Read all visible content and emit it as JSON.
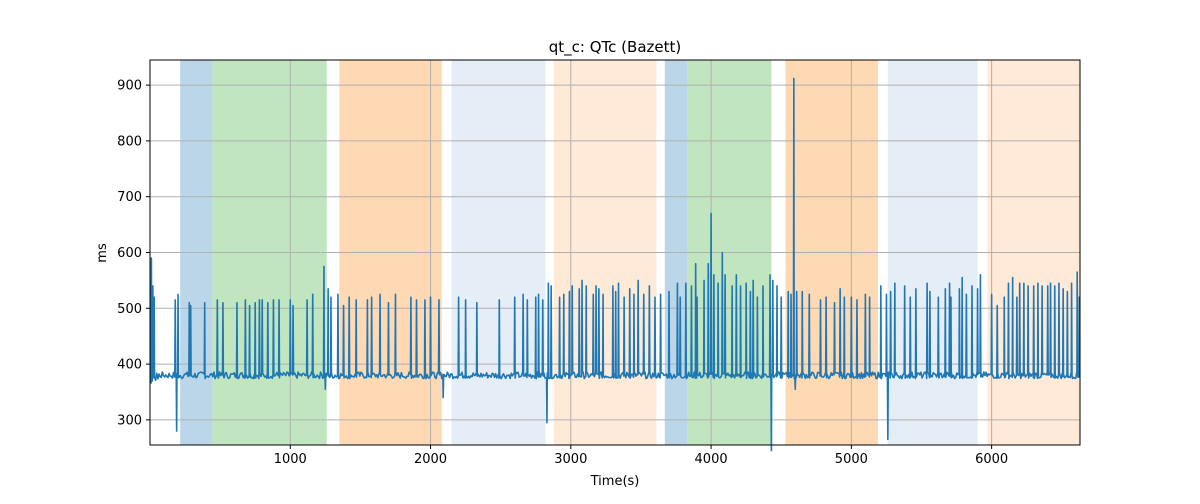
{
  "chart_data": {
    "type": "line",
    "title": "qt_c: QTc (Bazett)",
    "xlabel": "Time(s)",
    "ylabel": "ms",
    "xlim": [
      0,
      6630
    ],
    "ylim": [
      255,
      945
    ],
    "x_ticks": [
      1000,
      2000,
      3000,
      4000,
      5000,
      6000
    ],
    "y_ticks": [
      300,
      400,
      500,
      600,
      700,
      800,
      900
    ],
    "grid": true,
    "line_color": "#1f77b4",
    "shaded_regions": [
      {
        "start": 215,
        "end": 445,
        "color": "#8fbbdb",
        "opacity": 0.6
      },
      {
        "start": 445,
        "end": 1260,
        "color": "#98d394",
        "opacity": 0.6
      },
      {
        "start": 1350,
        "end": 2080,
        "color": "#ffbf80",
        "opacity": 0.6
      },
      {
        "start": 2150,
        "end": 2820,
        "color": "#c6d7ec",
        "opacity": 0.45
      },
      {
        "start": 2880,
        "end": 3610,
        "color": "#ffd0a6",
        "opacity": 0.45
      },
      {
        "start": 3670,
        "end": 3830,
        "color": "#8fbbdb",
        "opacity": 0.6
      },
      {
        "start": 3830,
        "end": 4430,
        "color": "#98d394",
        "opacity": 0.6
      },
      {
        "start": 4530,
        "end": 5190,
        "color": "#ffbf80",
        "opacity": 0.6
      },
      {
        "start": 5260,
        "end": 5900,
        "color": "#c6d7ec",
        "opacity": 0.45
      },
      {
        "start": 5970,
        "end": 6630,
        "color": "#ffd0a6",
        "opacity": 0.45
      }
    ],
    "series": [
      {
        "baseline": 380,
        "baseline_noise": 6,
        "spikes": [
          [
            5,
            545
          ],
          [
            10,
            590
          ],
          [
            20,
            540
          ],
          [
            30,
            520
          ],
          [
            180,
            515
          ],
          [
            190,
            280
          ],
          [
            200,
            525
          ],
          [
            280,
            510
          ],
          [
            290,
            505
          ],
          [
            390,
            510
          ],
          [
            480,
            515
          ],
          [
            520,
            510
          ],
          [
            620,
            510
          ],
          [
            680,
            515
          ],
          [
            710,
            505
          ],
          [
            750,
            510
          ],
          [
            780,
            515
          ],
          [
            800,
            515
          ],
          [
            840,
            510
          ],
          [
            880,
            515
          ],
          [
            920,
            515
          ],
          [
            1000,
            515
          ],
          [
            1020,
            505
          ],
          [
            1120,
            515
          ],
          [
            1160,
            525
          ],
          [
            1240,
            575
          ],
          [
            1250,
            355
          ],
          [
            1270,
            535
          ],
          [
            1290,
            520
          ],
          [
            1340,
            525
          ],
          [
            1380,
            505
          ],
          [
            1420,
            520
          ],
          [
            1470,
            515
          ],
          [
            1550,
            515
          ],
          [
            1580,
            520
          ],
          [
            1640,
            525
          ],
          [
            1700,
            510
          ],
          [
            1750,
            525
          ],
          [
            1860,
            520
          ],
          [
            1900,
            515
          ],
          [
            1960,
            515
          ],
          [
            2000,
            520
          ],
          [
            2060,
            515
          ],
          [
            2090,
            340
          ],
          [
            2200,
            520
          ],
          [
            2250,
            515
          ],
          [
            2330,
            510
          ],
          [
            2490,
            515
          ],
          [
            2600,
            520
          ],
          [
            2660,
            525
          ],
          [
            2690,
            515
          ],
          [
            2750,
            520
          ],
          [
            2770,
            525
          ],
          [
            2800,
            515
          ],
          [
            2830,
            295
          ],
          [
            2840,
            545
          ],
          [
            2860,
            540
          ],
          [
            2920,
            520
          ],
          [
            2950,
            525
          ],
          [
            2990,
            530
          ],
          [
            3010,
            540
          ],
          [
            3060,
            535
          ],
          [
            3080,
            550
          ],
          [
            3110,
            540
          ],
          [
            3160,
            525
          ],
          [
            3180,
            540
          ],
          [
            3200,
            535
          ],
          [
            3230,
            525
          ],
          [
            3300,
            540
          ],
          [
            3320,
            530
          ],
          [
            3340,
            545
          ],
          [
            3380,
            520
          ],
          [
            3420,
            535
          ],
          [
            3450,
            525
          ],
          [
            3480,
            550
          ],
          [
            3520,
            525
          ],
          [
            3560,
            540
          ],
          [
            3600,
            520
          ],
          [
            3640,
            525
          ],
          [
            3700,
            530
          ],
          [
            3760,
            545
          ],
          [
            3780,
            520
          ],
          [
            3820,
            545
          ],
          [
            3860,
            540
          ],
          [
            3890,
            580
          ],
          [
            3900,
            520
          ],
          [
            3950,
            550
          ],
          [
            3980,
            580
          ],
          [
            4000,
            670
          ],
          [
            4020,
            560
          ],
          [
            4050,
            545
          ],
          [
            4080,
            600
          ],
          [
            4100,
            560
          ],
          [
            4150,
            540
          ],
          [
            4180,
            560
          ],
          [
            4210,
            540
          ],
          [
            4250,
            545
          ],
          [
            4280,
            530
          ],
          [
            4300,
            550
          ],
          [
            4330,
            520
          ],
          [
            4370,
            540
          ],
          [
            4420,
            560
          ],
          [
            4430,
            245
          ],
          [
            4440,
            550
          ],
          [
            4470,
            540
          ],
          [
            4500,
            520
          ],
          [
            4550,
            530
          ],
          [
            4570,
            525
          ],
          [
            4590,
            912
          ],
          [
            4600,
            355
          ],
          [
            4610,
            530
          ],
          [
            4650,
            530
          ],
          [
            4700,
            525
          ],
          [
            4780,
            515
          ],
          [
            4820,
            520
          ],
          [
            4880,
            510
          ],
          [
            4920,
            535
          ],
          [
            4950,
            520
          ],
          [
            5000,
            520
          ],
          [
            5040,
            515
          ],
          [
            5100,
            525
          ],
          [
            5130,
            520
          ],
          [
            5210,
            540
          ],
          [
            5250,
            525
          ],
          [
            5260,
            265
          ],
          [
            5280,
            530
          ],
          [
            5310,
            545
          ],
          [
            5380,
            540
          ],
          [
            5420,
            520
          ],
          [
            5460,
            535
          ],
          [
            5540,
            545
          ],
          [
            5560,
            530
          ],
          [
            5620,
            520
          ],
          [
            5670,
            535
          ],
          [
            5700,
            545
          ],
          [
            5710,
            520
          ],
          [
            5770,
            535
          ],
          [
            5790,
            555
          ],
          [
            5820,
            525
          ],
          [
            5860,
            540
          ],
          [
            5900,
            535
          ],
          [
            5920,
            560
          ],
          [
            6000,
            525
          ],
          [
            6040,
            505
          ],
          [
            6090,
            520
          ],
          [
            6120,
            545
          ],
          [
            6150,
            555
          ],
          [
            6180,
            520
          ],
          [
            6200,
            545
          ],
          [
            6230,
            545
          ],
          [
            6260,
            540
          ],
          [
            6300,
            540
          ],
          [
            6330,
            545
          ],
          [
            6360,
            540
          ],
          [
            6400,
            540
          ],
          [
            6420,
            545
          ],
          [
            6450,
            540
          ],
          [
            6480,
            545
          ],
          [
            6510,
            535
          ],
          [
            6540,
            530
          ],
          [
            6570,
            545
          ],
          [
            6610,
            565
          ],
          [
            6625,
            520
          ]
        ]
      }
    ]
  }
}
